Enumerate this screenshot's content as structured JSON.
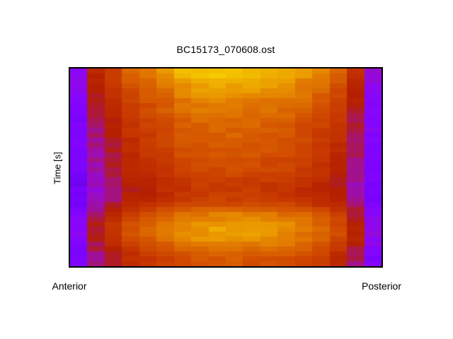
{
  "window": {
    "background": "#ffffff"
  },
  "chart_data": {
    "type": "heatmap",
    "title": "BC15173_070608.ost",
    "ylabel": "Time [s]",
    "x_axis_labels": {
      "left": "Anterior",
      "right": "Posterior"
    },
    "grid": "off",
    "legend": "none",
    "n_cols": 18,
    "n_rows": 40,
    "orientation": "columns are anterior-to-posterior positions, rows are time from top to bottom",
    "colormap": "gnuplot",
    "colormap_samples": {
      "low_purple": "#7d03fe",
      "magenta": "#a5127b",
      "dark_red": "#b42000",
      "orange": "#c93d00",
      "amber": "#e07000",
      "high_yellow": "#f6cd00"
    },
    "value_range": [
      0,
      1
    ],
    "value_model": "outer_product",
    "column_profile": [
      0.25,
      0.42,
      0.5,
      0.58,
      0.62,
      0.66,
      0.7,
      0.72,
      0.73,
      0.73,
      0.72,
      0.71,
      0.7,
      0.67,
      0.63,
      0.57,
      0.45,
      0.27
    ],
    "row_profile": [
      1.27,
      1.25,
      1.21,
      1.18,
      1.16,
      1.13,
      1.1,
      1.08,
      1.07,
      1.05,
      1.03,
      1.01,
      1.0,
      0.99,
      0.98,
      0.97,
      0.96,
      0.95,
      0.93,
      0.92,
      0.91,
      0.9,
      0.87,
      0.85,
      0.84,
      0.85,
      0.87,
      0.92,
      1.0,
      1.08,
      1.12,
      1.15,
      1.17,
      1.16,
      1.14,
      1.1,
      1.05,
      1.0,
      0.97,
      0.95
    ],
    "border_color": "#000000"
  }
}
